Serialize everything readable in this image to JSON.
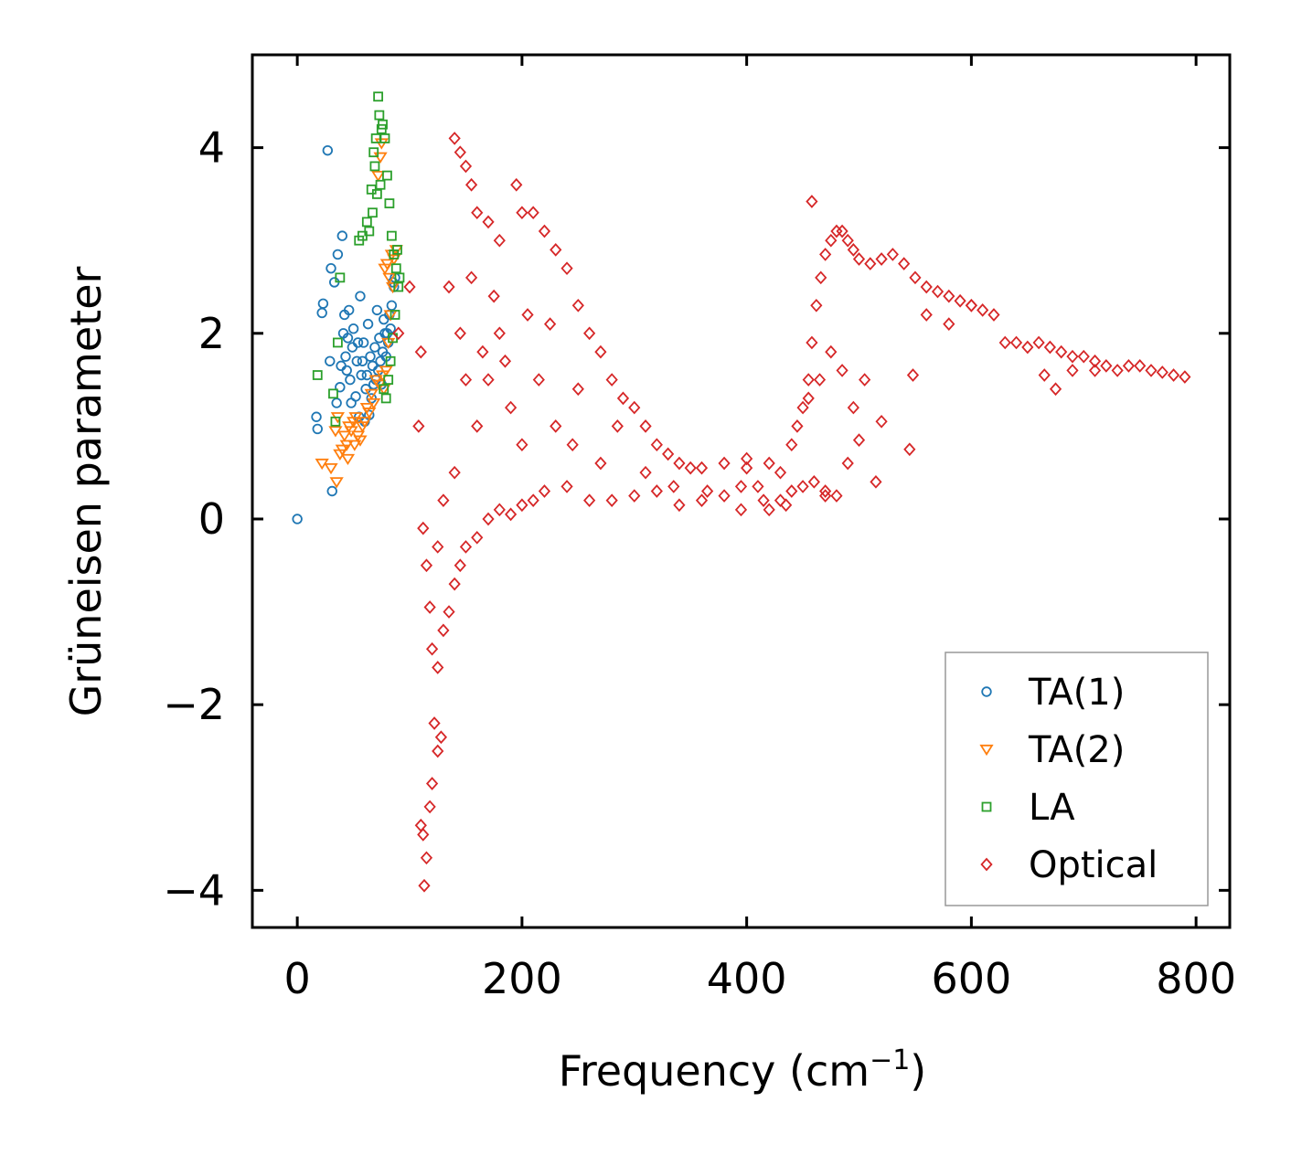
{
  "chart_data": {
    "type": "scatter",
    "title": "",
    "xlabel": "Frequency (cm",
    "xlabel_sup": "−1",
    "xlabel_close": ")",
    "ylabel": "Grüneisen parameter",
    "xlim": [
      -40,
      830
    ],
    "ylim": [
      -4.4,
      5.0
    ],
    "xticks": [
      0,
      200,
      400,
      600,
      800
    ],
    "yticks": [
      -4,
      -2,
      0,
      2,
      4
    ],
    "xtick_labels": [
      "0",
      "200",
      "400",
      "600",
      "800"
    ],
    "ytick_labels": [
      "−4",
      "−2",
      "0",
      "2",
      "4"
    ],
    "legend_position": "lower-right",
    "series": [
      {
        "name": "TA(1)",
        "marker": "circle",
        "color": "#1f77b4",
        "points": [
          [
            0,
            0
          ],
          [
            27,
            3.97
          ],
          [
            31,
            0.3
          ],
          [
            17,
            1.1
          ],
          [
            18,
            0.97
          ],
          [
            29,
            1.7
          ],
          [
            30,
            2.7
          ],
          [
            33,
            2.55
          ],
          [
            36,
            2.85
          ],
          [
            40,
            3.05
          ],
          [
            22,
            2.22
          ],
          [
            23,
            2.32
          ],
          [
            35,
            1.25
          ],
          [
            38,
            1.42
          ],
          [
            42,
            2.2
          ],
          [
            45,
            1.95
          ],
          [
            48,
            1.25
          ],
          [
            52,
            1.32
          ],
          [
            55,
            1.1
          ],
          [
            60,
            1.05
          ],
          [
            64,
            1.12
          ],
          [
            68,
            1.45
          ],
          [
            72,
            1.6
          ],
          [
            76,
            1.8
          ],
          [
            80,
            2.0
          ],
          [
            84,
            2.3
          ],
          [
            86,
            2.5
          ],
          [
            87,
            2.6
          ],
          [
            85,
            2.55
          ],
          [
            82,
            2.2
          ],
          [
            78,
            2.0
          ],
          [
            74,
            1.7
          ],
          [
            70,
            1.5
          ],
          [
            66,
            1.3
          ],
          [
            62,
            1.55
          ],
          [
            58,
            1.7
          ],
          [
            54,
            1.9
          ],
          [
            50,
            2.05
          ],
          [
            46,
            2.25
          ],
          [
            44,
            1.6
          ],
          [
            56,
            2.4
          ],
          [
            63,
            2.1
          ],
          [
            69,
            1.85
          ],
          [
            73,
            1.95
          ],
          [
            77,
            2.15
          ],
          [
            81,
            1.9
          ],
          [
            61,
            1.4
          ],
          [
            67,
            1.65
          ],
          [
            71,
            2.25
          ],
          [
            75,
            1.45
          ],
          [
            79,
            1.75
          ],
          [
            83,
            2.05
          ],
          [
            59,
            1.9
          ],
          [
            65,
            1.75
          ],
          [
            57,
            1.55
          ],
          [
            53,
            1.7
          ],
          [
            49,
            1.85
          ],
          [
            47,
            1.5
          ],
          [
            43,
            1.75
          ],
          [
            41,
            2.0
          ],
          [
            39,
            1.65
          ]
        ]
      },
      {
        "name": "TA(2)",
        "marker": "triangle-down",
        "color": "#ff7f0e",
        "points": [
          [
            22,
            0.6
          ],
          [
            30,
            0.55
          ],
          [
            35,
            0.4
          ],
          [
            38,
            0.7
          ],
          [
            40,
            0.75
          ],
          [
            42,
            0.9
          ],
          [
            44,
            0.8
          ],
          [
            46,
            1.0
          ],
          [
            48,
            0.95
          ],
          [
            50,
            1.05
          ],
          [
            52,
            1.1
          ],
          [
            54,
            0.9
          ],
          [
            58,
            1.0
          ],
          [
            62,
            1.2
          ],
          [
            66,
            1.35
          ],
          [
            70,
            1.5
          ],
          [
            72,
            3.7
          ],
          [
            74,
            3.9
          ],
          [
            75,
            4.05
          ],
          [
            78,
            2.7
          ],
          [
            80,
            2.75
          ],
          [
            82,
            2.6
          ],
          [
            84,
            2.85
          ],
          [
            86,
            2.8
          ],
          [
            88,
            2.9
          ],
          [
            85,
            2.5
          ],
          [
            83,
            2.2
          ],
          [
            81,
            1.9
          ],
          [
            79,
            1.6
          ],
          [
            77,
            1.4
          ],
          [
            68,
            1.25
          ],
          [
            64,
            1.15
          ],
          [
            60,
            1.05
          ],
          [
            56,
            0.85
          ],
          [
            36,
            1.1
          ],
          [
            34,
            0.95
          ],
          [
            45,
            0.65
          ],
          [
            51,
            0.8
          ],
          [
            73,
            1.45
          ],
          [
            76,
            1.55
          ]
        ]
      },
      {
        "name": "LA",
        "marker": "square",
        "color": "#2ca02c",
        "points": [
          [
            18,
            1.55
          ],
          [
            32,
            1.35
          ],
          [
            34,
            1.05
          ],
          [
            36,
            1.9
          ],
          [
            38,
            2.6
          ],
          [
            55,
            3.0
          ],
          [
            58,
            3.05
          ],
          [
            62,
            3.2
          ],
          [
            66,
            3.55
          ],
          [
            68,
            3.95
          ],
          [
            70,
            4.1
          ],
          [
            72,
            4.55
          ],
          [
            73,
            4.35
          ],
          [
            75,
            4.2
          ],
          [
            76,
            4.25
          ],
          [
            78,
            4.1
          ],
          [
            80,
            3.7
          ],
          [
            82,
            3.4
          ],
          [
            84,
            3.05
          ],
          [
            86,
            2.85
          ],
          [
            88,
            2.7
          ],
          [
            90,
            2.5
          ],
          [
            87,
            2.2
          ],
          [
            85,
            1.95
          ],
          [
            83,
            1.7
          ],
          [
            81,
            1.5
          ],
          [
            79,
            1.3
          ],
          [
            77,
            1.4
          ],
          [
            74,
            3.6
          ],
          [
            71,
            3.5
          ],
          [
            69,
            3.8
          ],
          [
            67,
            3.3
          ],
          [
            64,
            3.1
          ],
          [
            89,
            2.9
          ],
          [
            91,
            2.6
          ]
        ]
      },
      {
        "name": "Optical",
        "marker": "diamond",
        "color": "#d62728",
        "points": [
          [
            90,
            2.0
          ],
          [
            100,
            2.5
          ],
          [
            110,
            1.8
          ],
          [
            108,
            1.0
          ],
          [
            112,
            -0.1
          ],
          [
            115,
            -0.5
          ],
          [
            118,
            -0.95
          ],
          [
            120,
            -1.4
          ],
          [
            122,
            -2.2
          ],
          [
            125,
            -2.5
          ],
          [
            128,
            -2.35
          ],
          [
            110,
            -3.3
          ],
          [
            112,
            -3.4
          ],
          [
            115,
            -3.65
          ],
          [
            113,
            -3.95
          ],
          [
            118,
            -3.1
          ],
          [
            120,
            -2.85
          ],
          [
            125,
            -1.6
          ],
          [
            130,
            -1.2
          ],
          [
            135,
            -1.0
          ],
          [
            140,
            -0.7
          ],
          [
            145,
            -0.5
          ],
          [
            150,
            -0.3
          ],
          [
            160,
            -0.2
          ],
          [
            170,
            0.0
          ],
          [
            180,
            0.1
          ],
          [
            190,
            0.05
          ],
          [
            200,
            0.15
          ],
          [
            210,
            0.2
          ],
          [
            220,
            0.3
          ],
          [
            240,
            0.35
          ],
          [
            260,
            0.2
          ],
          [
            280,
            0.2
          ],
          [
            300,
            0.25
          ],
          [
            320,
            0.3
          ],
          [
            340,
            0.15
          ],
          [
            360,
            0.2
          ],
          [
            380,
            0.25
          ],
          [
            400,
            0.55
          ],
          [
            410,
            0.35
          ],
          [
            420,
            0.1
          ],
          [
            430,
            0.2
          ],
          [
            440,
            0.3
          ],
          [
            450,
            0.35
          ],
          [
            460,
            0.4
          ],
          [
            470,
            0.3
          ],
          [
            480,
            0.25
          ],
          [
            140,
            4.1
          ],
          [
            145,
            3.95
          ],
          [
            150,
            3.8
          ],
          [
            155,
            3.6
          ],
          [
            160,
            3.3
          ],
          [
            170,
            3.2
          ],
          [
            180,
            3.0
          ],
          [
            195,
            3.6
          ],
          [
            200,
            3.3
          ],
          [
            210,
            3.3
          ],
          [
            220,
            3.1
          ],
          [
            230,
            2.9
          ],
          [
            240,
            2.7
          ],
          [
            250,
            2.3
          ],
          [
            260,
            2.0
          ],
          [
            270,
            1.8
          ],
          [
            280,
            1.5
          ],
          [
            290,
            1.3
          ],
          [
            300,
            1.2
          ],
          [
            310,
            1.0
          ],
          [
            320,
            0.8
          ],
          [
            330,
            0.7
          ],
          [
            340,
            0.6
          ],
          [
            350,
            0.55
          ],
          [
            360,
            0.55
          ],
          [
            380,
            0.6
          ],
          [
            400,
            0.65
          ],
          [
            420,
            0.6
          ],
          [
            440,
            0.8
          ],
          [
            450,
            1.2
          ],
          [
            455,
            1.5
          ],
          [
            458,
            1.9
          ],
          [
            462,
            2.3
          ],
          [
            466,
            2.6
          ],
          [
            470,
            2.85
          ],
          [
            475,
            3.0
          ],
          [
            480,
            3.1
          ],
          [
            485,
            3.1
          ],
          [
            490,
            3.0
          ],
          [
            495,
            2.9
          ],
          [
            500,
            2.8
          ],
          [
            510,
            2.75
          ],
          [
            520,
            2.8
          ],
          [
            530,
            2.85
          ],
          [
            540,
            2.75
          ],
          [
            550,
            2.6
          ],
          [
            560,
            2.5
          ],
          [
            570,
            2.45
          ],
          [
            580,
            2.4
          ],
          [
            590,
            2.35
          ],
          [
            600,
            2.3
          ],
          [
            610,
            2.25
          ],
          [
            620,
            2.2
          ],
          [
            640,
            1.9
          ],
          [
            650,
            1.85
          ],
          [
            660,
            1.9
          ],
          [
            670,
            1.85
          ],
          [
            680,
            1.8
          ],
          [
            690,
            1.75
          ],
          [
            700,
            1.75
          ],
          [
            710,
            1.7
          ],
          [
            720,
            1.65
          ],
          [
            730,
            1.6
          ],
          [
            740,
            1.65
          ],
          [
            750,
            1.65
          ],
          [
            760,
            1.6
          ],
          [
            770,
            1.58
          ],
          [
            780,
            1.55
          ],
          [
            790,
            1.53
          ],
          [
            458,
            3.42
          ],
          [
            545,
            0.75
          ],
          [
            515,
            0.4
          ],
          [
            500,
            0.85
          ],
          [
            490,
            0.6
          ],
          [
            470,
            0.25
          ],
          [
            520,
            1.05
          ],
          [
            505,
            1.5
          ],
          [
            495,
            1.2
          ],
          [
            485,
            1.6
          ],
          [
            475,
            1.8
          ],
          [
            465,
            1.5
          ],
          [
            455,
            1.3
          ],
          [
            445,
            1.0
          ],
          [
            548,
            1.55
          ],
          [
            560,
            2.2
          ],
          [
            580,
            2.1
          ],
          [
            600,
            2.3
          ],
          [
            630,
            1.9
          ],
          [
            665,
            1.55
          ],
          [
            675,
            1.4
          ],
          [
            690,
            1.6
          ],
          [
            710,
            1.6
          ],
          [
            160,
            1.0
          ],
          [
            170,
            1.5
          ],
          [
            180,
            2.0
          ],
          [
            190,
            1.2
          ],
          [
            200,
            0.8
          ],
          [
            215,
            1.5
          ],
          [
            230,
            1.0
          ],
          [
            245,
            0.8
          ],
          [
            270,
            0.6
          ],
          [
            150,
            1.5
          ],
          [
            140,
            0.5
          ],
          [
            130,
            0.2
          ],
          [
            125,
            -0.3
          ],
          [
            135,
            2.5
          ],
          [
            145,
            2.0
          ],
          [
            155,
            2.6
          ],
          [
            165,
            1.8
          ],
          [
            175,
            2.4
          ],
          [
            185,
            1.7
          ],
          [
            205,
            2.2
          ],
          [
            225,
            2.1
          ],
          [
            250,
            1.4
          ],
          [
            285,
            1.0
          ],
          [
            310,
            0.5
          ],
          [
            335,
            0.35
          ],
          [
            365,
            0.3
          ],
          [
            395,
            0.35
          ],
          [
            415,
            0.2
          ],
          [
            435,
            0.15
          ],
          [
            395,
            0.1
          ],
          [
            430,
            0.5
          ]
        ]
      }
    ]
  }
}
